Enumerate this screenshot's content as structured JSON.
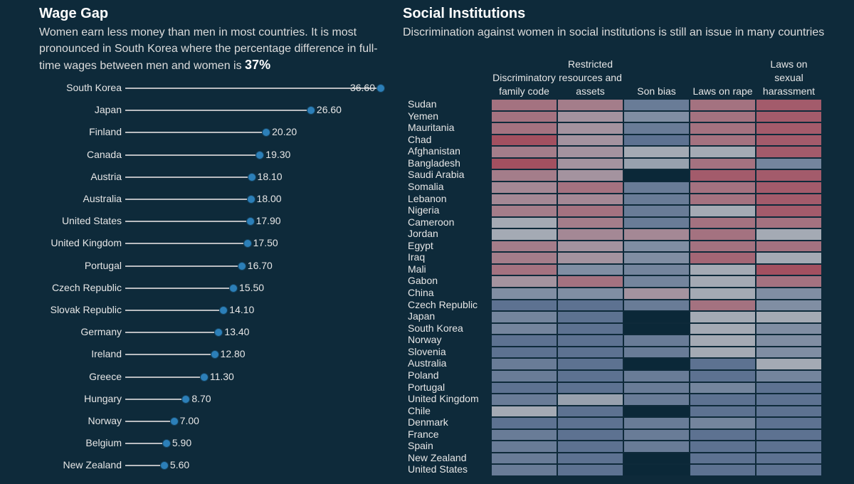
{
  "chart_data": [
    {
      "type": "lollipop",
      "title": "Wage Gap",
      "subtitle": "Women earn less money than men in most countries. It is most pronounced in South Korea where the percentage difference in full-time wages between men and women is",
      "subtitle_highlight": "37%",
      "categories": [
        "South Korea",
        "Japan",
        "Finland",
        "Canada",
        "Austria",
        "Australia",
        "United States",
        "United Kingdom",
        "Portugal",
        "Czech Republic",
        "Slovak Republic",
        "Germany",
        "Ireland",
        "Greece",
        "Hungary",
        "Norway",
        "Belgium",
        "New Zealand"
      ],
      "values": [
        36.6,
        26.6,
        20.2,
        19.3,
        18.1,
        18.0,
        17.9,
        17.5,
        16.7,
        15.5,
        14.1,
        13.4,
        12.8,
        11.3,
        8.7,
        7.0,
        5.9,
        5.6
      ],
      "value_labels": [
        "36.60",
        "26.60",
        "20.20",
        "19.30",
        "18.10",
        "18.00",
        "17.90",
        "17.50",
        "16.70",
        "15.50",
        "14.10",
        "13.40",
        "12.80",
        "11.30",
        "8.70",
        "7.00",
        "5.90",
        "5.60"
      ],
      "color": "#2c7fb8",
      "line_color": "#b9bcc0"
    },
    {
      "type": "heatmap",
      "title": "Social Institutions",
      "subtitle": "Discrimination against women in social institutions is still an issue in many countries",
      "x_categories": [
        "Discriminatory family code",
        "Restricted resources and assets",
        "Son bias",
        "Laws on rape",
        "Laws on sexual harassment"
      ],
      "y_categories": [
        "Sudan",
        "Yemen",
        "Mauritania",
        "Chad",
        "Afghanistan",
        "Bangladesh",
        "Saudi Arabia",
        "Somalia",
        "Lebanon",
        "Nigeria",
        "Cameroon",
        "Jordan",
        "Egypt",
        "Iraq",
        "Mali",
        "Gabon",
        "China",
        "Czech Republic",
        "Japan",
        "South Korea",
        "Norway",
        "Slovenia",
        "Australia",
        "Poland",
        "Portugal",
        "United Kingdom",
        "Chile",
        "Denmark",
        "France",
        "Spain",
        "New Zealand",
        "United States"
      ],
      "values": [
        [
          0.75,
          0.7,
          0.25,
          0.75,
          0.85
        ],
        [
          0.75,
          0.6,
          0.35,
          0.75,
          0.85
        ],
        [
          0.75,
          0.6,
          0.25,
          0.75,
          0.85
        ],
        [
          0.9,
          0.6,
          0.2,
          0.75,
          0.85
        ],
        [
          0.7,
          0.6,
          0.5,
          0.5,
          0.85
        ],
        [
          0.9,
          0.6,
          0.45,
          0.75,
          0.3
        ],
        [
          0.7,
          0.6,
          null,
          0.85,
          0.85
        ],
        [
          0.65,
          0.75,
          0.25,
          0.75,
          0.85
        ],
        [
          0.65,
          0.65,
          0.25,
          0.75,
          0.85
        ],
        [
          0.7,
          0.75,
          0.25,
          0.5,
          0.85
        ],
        [
          0.5,
          0.7,
          0.25,
          0.75,
          0.75
        ],
        [
          0.5,
          0.65,
          0.65,
          0.75,
          0.5
        ],
        [
          0.7,
          0.6,
          0.35,
          0.75,
          0.75
        ],
        [
          0.7,
          0.6,
          0.35,
          0.8,
          0.5
        ],
        [
          0.75,
          0.35,
          0.3,
          0.5,
          0.9
        ],
        [
          0.6,
          0.75,
          0.3,
          0.5,
          0.75
        ],
        [
          0.35,
          0.35,
          0.6,
          0.5,
          0.35
        ],
        [
          0.2,
          0.2,
          0.25,
          0.75,
          0.35
        ],
        [
          0.3,
          0.2,
          null,
          0.5,
          0.5
        ],
        [
          0.3,
          0.2,
          null,
          0.5,
          0.35
        ],
        [
          0.2,
          0.2,
          0.25,
          0.5,
          0.35
        ],
        [
          0.2,
          0.2,
          0.25,
          0.5,
          0.35
        ],
        [
          0.25,
          0.2,
          null,
          0.2,
          0.5
        ],
        [
          0.25,
          0.2,
          0.25,
          0.2,
          0.3
        ],
        [
          0.2,
          0.2,
          0.25,
          0.3,
          0.2
        ],
        [
          0.25,
          0.45,
          0.25,
          0.2,
          0.2
        ],
        [
          0.5,
          0.2,
          null,
          0.2,
          0.2
        ],
        [
          0.2,
          0.2,
          0.25,
          0.3,
          0.2
        ],
        [
          0.25,
          0.2,
          0.25,
          0.2,
          0.2
        ],
        [
          0.25,
          0.2,
          0.25,
          0.2,
          0.2
        ],
        [
          0.25,
          0.2,
          null,
          0.2,
          0.2
        ],
        [
          0.25,
          0.2,
          null,
          0.2,
          0.2
        ]
      ],
      "color_scale": [
        "#2d4d7a",
        "#a4aab4",
        "#a3394b"
      ],
      "null_color": "#0b2838"
    }
  ]
}
